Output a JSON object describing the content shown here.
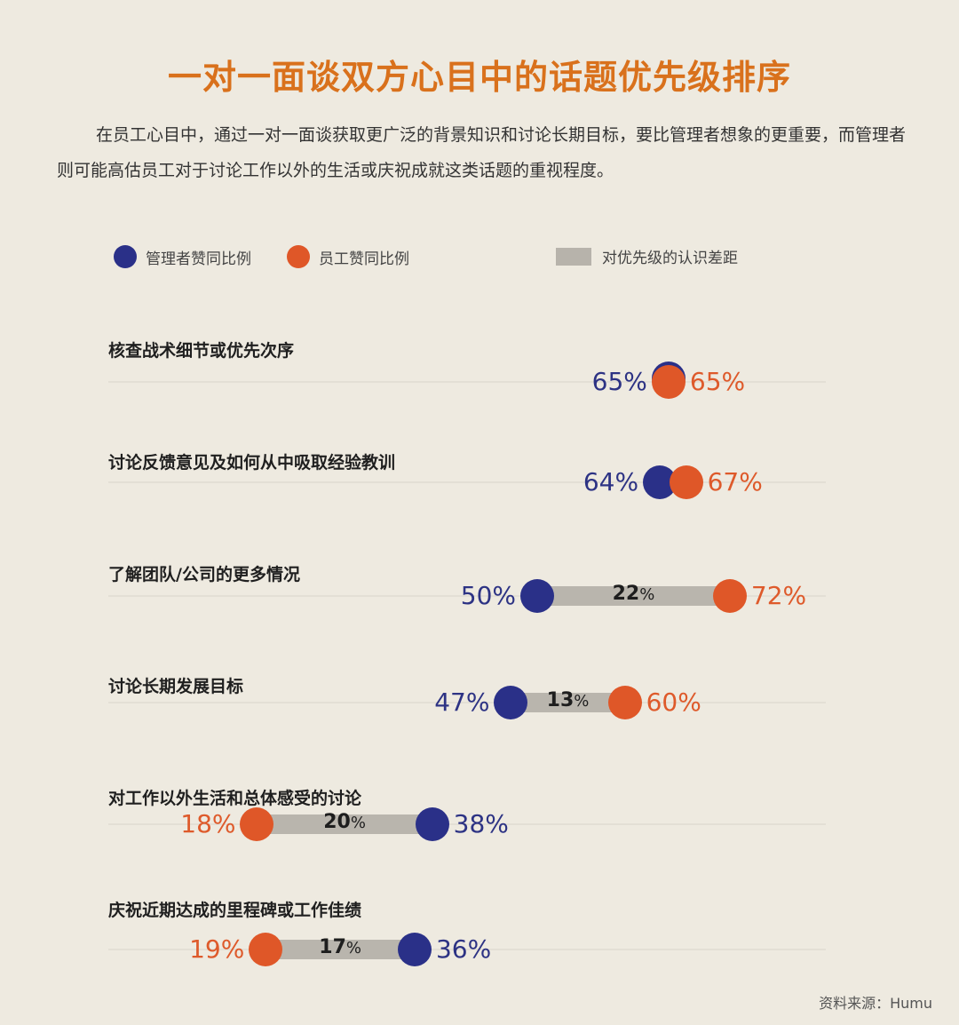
{
  "title": "一对一面谈双方心目中的话题优先级排序",
  "intro": "在员工心目中，通过一对一面谈获取更广泛的背景知识和讨论长期目标，要比管理者想象的更重要，而管理者则可能高估员工对于讨论工作以外的生活或庆祝成就这类话题的重视程度。",
  "legend": {
    "manager": "管理者赞同比例",
    "employee": "员工赞同比例",
    "gap": "对优先级的认识差距"
  },
  "colors": {
    "manager": "#2a3088",
    "employee": "#df5728",
    "gap": "#b9b5ad",
    "title": "#d9711c",
    "background": "#eeeae0"
  },
  "rows": [
    {
      "label": "核查战术细节或优先次序",
      "manager": "65%",
      "employee": "65%",
      "gap": ""
    },
    {
      "label": "讨论反馈意见及如何从中吸取经验教训",
      "manager": "64%",
      "employee": "67%",
      "gap": ""
    },
    {
      "label": "了解团队/公司的更多情况",
      "manager": "50%",
      "employee": "72%",
      "gap": "22"
    },
    {
      "label": "讨论长期发展目标",
      "manager": "47%",
      "employee": "60%",
      "gap": "13"
    },
    {
      "label": "对工作以外生活和总体感受的讨论",
      "manager": "38%",
      "employee": "18%",
      "gap": "20"
    },
    {
      "label": "庆祝近期达成的里程碑或工作佳绩",
      "manager": "36%",
      "employee": "19%",
      "gap": "17"
    }
  ],
  "pct_sign": "%",
  "source": "资料来源：Humu",
  "chart_data": {
    "type": "dumbbell",
    "title": "一对一面谈双方心目中的话题优先级排序",
    "categories": [
      "核查战术细节或优先次序",
      "讨论反馈意见及如何从中吸取经验教训",
      "了解团队/公司的更多情况",
      "讨论长期发展目标",
      "对工作以外生活和总体感受的讨论",
      "庆祝近期达成的里程碑或工作佳绩"
    ],
    "series": [
      {
        "name": "管理者赞同比例",
        "color": "#2a3088",
        "values": [
          65,
          64,
          50,
          47,
          38,
          36
        ]
      },
      {
        "name": "员工赞同比例",
        "color": "#df5728",
        "values": [
          65,
          67,
          72,
          60,
          18,
          19
        ]
      }
    ],
    "gap_labels": [
      null,
      null,
      22,
      13,
      20,
      17
    ],
    "gap_legend": "对优先级的认识差距",
    "unit": "%",
    "xlim": [
      0,
      82
    ],
    "legend_position": "top",
    "source": "资料来源：Humu"
  }
}
